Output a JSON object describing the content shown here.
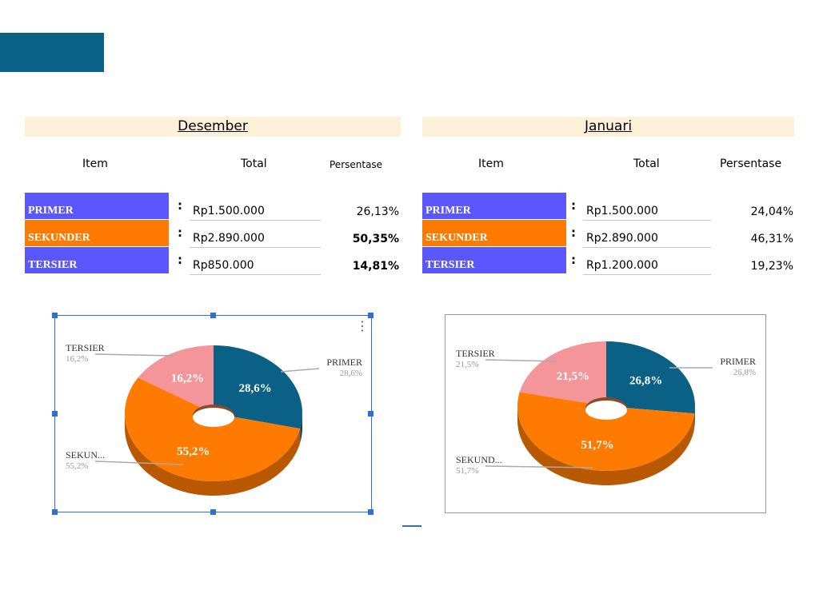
{
  "colors": {
    "accent": "#0b6185",
    "primer": "#5a57ff",
    "sekunder": "#ff7a00",
    "tersier": "#5a57ff",
    "pie_primer": "#0b6185",
    "pie_sekunder": "#ff7a00",
    "pie_tersier": "#f4959a"
  },
  "headers": {
    "item": "Item",
    "total": "Total",
    "persentase": "Persentase"
  },
  "left": {
    "month": "Desember",
    "rows": [
      {
        "label": "PRIMER",
        "colon": ":",
        "total": "Rp1.500.000",
        "pct": "26,13%"
      },
      {
        "label": "SEKUNDER",
        "colon": ":",
        "total": "Rp2.890.000",
        "pct": "50,35%"
      },
      {
        "label": "TERSIER",
        "colon": ":",
        "total": "Rp850.000",
        "pct": "14,81%"
      }
    ]
  },
  "right": {
    "month": "Januari",
    "rows": [
      {
        "label": "PRIMER",
        "colon": ":",
        "total": "Rp1.500.000",
        "pct": "24,04%"
      },
      {
        "label": "SEKUNDER",
        "colon": ":",
        "total": "Rp2.890.000",
        "pct": "46,31%"
      },
      {
        "label": "TERSIER",
        "colon": ":",
        "total": "Rp1.200.000",
        "pct": "19,23%"
      }
    ]
  },
  "chart_data": [
    {
      "type": "pie",
      "slices": [
        {
          "name": "PRIMER",
          "value": 28.6,
          "inner_label": "28,6%",
          "outer_name": "PRIMER",
          "outer_pct": "28,6%"
        },
        {
          "name": "SEKUNDER",
          "value": 55.2,
          "inner_label": "55,2%",
          "outer_name": "SEKUN...",
          "outer_pct": "55,2%"
        },
        {
          "name": "TERSIER",
          "value": 16.2,
          "inner_label": "16,2%",
          "outer_name": "TERSIER",
          "outer_pct": "16,2%"
        }
      ]
    },
    {
      "type": "pie",
      "slices": [
        {
          "name": "PRIMER",
          "value": 26.8,
          "inner_label": "26,8%",
          "outer_name": "PRIMER",
          "outer_pct": "26,8%"
        },
        {
          "name": "SEKUNDER",
          "value": 51.7,
          "inner_label": "51,7%",
          "outer_name": "SEKUND...",
          "outer_pct": "51,7%"
        },
        {
          "name": "TERSIER",
          "value": 21.5,
          "inner_label": "21,5%",
          "outer_name": "TERSIER",
          "outer_pct": "21,5%"
        }
      ]
    }
  ]
}
